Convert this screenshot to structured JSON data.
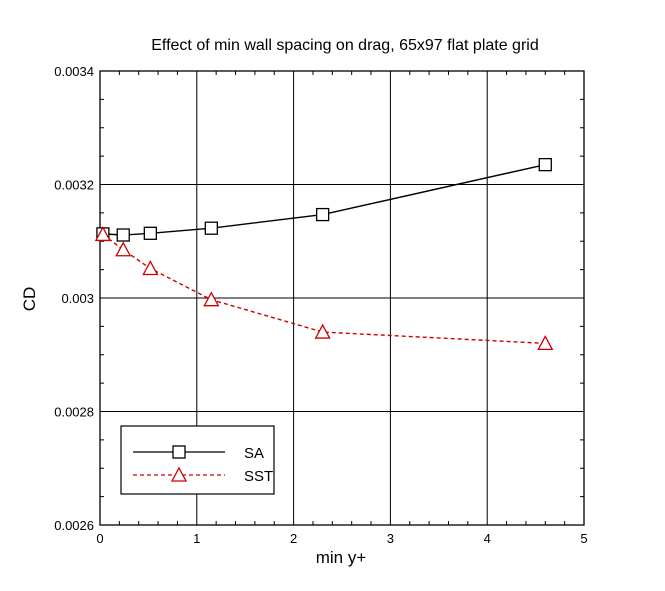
{
  "chart_data": {
    "type": "line",
    "title": "Effect of min wall spacing on drag, 65x97 flat plate grid",
    "xlabel": "min y+",
    "ylabel": "CD",
    "xlim": [
      0,
      5
    ],
    "ylim": [
      0.0026,
      0.0034
    ],
    "xticks": [
      0,
      1,
      2,
      3,
      4,
      5
    ],
    "xtick_labels": [
      "0",
      "1",
      "2",
      "3",
      "4",
      "5"
    ],
    "yticks": [
      0.0026,
      0.0028,
      0.003,
      0.0032,
      0.0034
    ],
    "ytick_labels": [
      "0.0026",
      "0.0028",
      "0.003",
      "0.0032",
      "0.0034"
    ],
    "grid": true,
    "legend_position": "bottom-left",
    "series": [
      {
        "name": "SA",
        "color": "#000000",
        "line_style": "solid",
        "marker": "square",
        "x": [
          0.03,
          0.24,
          0.52,
          1.15,
          2.3,
          4.6
        ],
        "y": [
          0.003113,
          0.003111,
          0.003114,
          0.003123,
          0.003147,
          0.003235
        ]
      },
      {
        "name": "SST",
        "color": "#cc0000",
        "line_style": "dashed",
        "marker": "triangle",
        "x": [
          0.03,
          0.24,
          0.52,
          1.15,
          2.3,
          4.6
        ],
        "y": [
          0.003112,
          0.003085,
          0.003052,
          0.002997,
          0.00294,
          0.00292
        ]
      }
    ]
  }
}
